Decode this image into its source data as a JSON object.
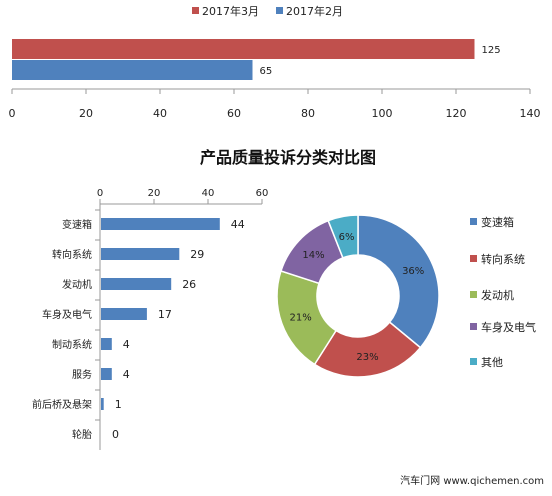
{
  "colors": {
    "march": "#c0504d",
    "feb": "#4f81bd",
    "bar": "#4f81bd",
    "axis": "#9a9a9a"
  },
  "chart_data": [
    {
      "type": "bar",
      "orientation": "horizontal",
      "series": [
        {
          "name": "2017年3月",
          "values": [
            125
          ],
          "color": "#c0504d"
        },
        {
          "name": "2017年2月",
          "values": [
            65
          ],
          "color": "#4f81bd"
        }
      ],
      "xlim": [
        0,
        140
      ],
      "xticks": [
        0,
        20,
        40,
        60,
        80,
        100,
        120,
        140
      ],
      "legend": "top"
    },
    {
      "type": "bar",
      "orientation": "horizontal",
      "title": "产品质量投诉分类对比图",
      "categories": [
        "变速箱",
        "转向系统",
        "发动机",
        "车身及电气",
        "制动系统",
        "服务",
        "前后桥及悬架",
        "轮胎"
      ],
      "values": [
        44,
        29,
        26,
        17,
        4,
        4,
        1,
        0
      ],
      "xlim": [
        0,
        60
      ],
      "xticks": [
        0,
        20,
        40,
        60
      ]
    },
    {
      "type": "pie",
      "variant": "donut",
      "labels": [
        "变速箱",
        "转向系统",
        "发动机",
        "车身及电气",
        "其他"
      ],
      "values": [
        36,
        23,
        21,
        14,
        6
      ],
      "value_labels": [
        "36%",
        "23%",
        "21%",
        "14%",
        "6%"
      ],
      "colors": [
        "#4f81bd",
        "#c0504d",
        "#9bbb59",
        "#8064a2",
        "#4bacc6"
      ],
      "legend": "right"
    }
  ],
  "watermark": "汽车门网 www.qichemen.com"
}
